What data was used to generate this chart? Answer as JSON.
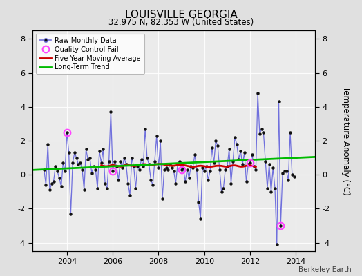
{
  "title": "LOUISVILLE GEORGIA",
  "subtitle": "32.975 N, 82.353 W (United States)",
  "ylabel": "Temperature Anomaly (°C)",
  "credit": "Berkeley Earth",
  "ylim": [
    -4.5,
    8.5
  ],
  "xlim": [
    2002.5,
    2014.83
  ],
  "yticks": [
    -4,
    -2,
    0,
    2,
    4,
    6,
    8
  ],
  "xticks": [
    2004,
    2006,
    2008,
    2010,
    2012,
    2014
  ],
  "bg_color": "#e0e0e0",
  "plot_bg_color": "#ebebeb",
  "raw_color": "#7070dd",
  "ma_color": "#cc0000",
  "trend_color": "#00bb00",
  "qc_color": "#ff44ff",
  "dot_color": "#111111",
  "raw_monthly": [
    0.3,
    -0.6,
    1.8,
    -0.9,
    -0.5,
    -0.4,
    0.5,
    0.2,
    -0.2,
    -0.7,
    0.7,
    0.2,
    2.5,
    1.3,
    -2.3,
    0.7,
    1.3,
    1.0,
    0.6,
    0.7,
    0.3,
    -0.9,
    1.5,
    0.9,
    1.0,
    0.1,
    0.5,
    0.3,
    -0.8,
    1.4,
    0.7,
    1.5,
    -0.5,
    -0.8,
    0.8,
    3.7,
    0.2,
    0.8,
    0.5,
    -0.3,
    0.8,
    0.4,
    1.0,
    0.6,
    -0.5,
    -1.2,
    1.0,
    0.5,
    -0.8,
    0.5,
    0.3,
    0.9,
    0.5,
    2.7,
    1.0,
    0.6,
    -0.3,
    -0.6,
    0.8,
    2.3,
    0.4,
    2.0,
    -1.4,
    0.3,
    0.4,
    0.3,
    0.6,
    0.4,
    0.2,
    -0.5,
    0.6,
    0.8,
    0.3,
    0.4,
    -0.4,
    0.3,
    -0.2,
    0.5,
    0.4,
    1.2,
    0.3,
    -1.6,
    -2.6,
    0.4,
    0.2,
    0.5,
    -0.3,
    0.2,
    1.6,
    0.7,
    2.0,
    1.7,
    0.3,
    -1.0,
    -0.8,
    0.3,
    0.5,
    1.5,
    -0.5,
    0.8,
    2.2,
    1.8,
    0.9,
    1.4,
    0.6,
    1.3,
    -0.4,
    0.6,
    0.7,
    1.2,
    0.5,
    0.3,
    4.8,
    2.4,
    2.7,
    2.5,
    0.8,
    -0.8,
    0.6,
    -1.0,
    0.4,
    -0.8,
    -4.1,
    4.3,
    -3.0,
    0.1,
    0.2,
    0.2,
    -0.3,
    2.5,
    0.0,
    -0.1
  ],
  "start_year": 2003.0,
  "qc_fail_indices": [
    12,
    36,
    72,
    108,
    124,
    132
  ],
  "moving_avg": [
    0.55,
    0.52,
    0.5,
    0.5,
    0.52,
    0.55,
    0.57,
    0.55,
    0.52,
    0.5,
    0.48,
    0.5,
    0.55,
    0.58,
    0.57,
    0.55,
    0.53,
    0.52,
    0.53,
    0.55,
    0.57,
    0.6,
    0.62,
    0.62,
    0.6,
    0.58,
    0.57,
    0.58,
    0.6,
    0.62,
    0.63,
    0.63,
    0.62,
    0.6,
    0.58,
    0.56,
    0.54,
    0.53,
    0.53,
    0.55,
    0.57,
    0.58,
    0.58,
    0.57,
    0.55,
    0.52,
    0.5,
    0.48,
    0.47,
    0.48,
    0.5,
    0.52,
    0.53,
    0.52,
    0.5,
    0.48,
    0.47,
    0.47,
    0.48,
    0.5,
    0.52,
    0.53,
    0.53,
    0.52,
    0.5,
    0.48,
    0.48,
    0.5,
    0.53,
    0.55,
    0.55,
    0.53,
    0.5,
    0.48,
    0.48,
    0.5,
    0.53,
    0.55,
    0.55,
    0.53,
    0.5,
    0.47
  ],
  "ma_start_year": 2005.5,
  "trend_x": [
    2002.5,
    2014.83
  ],
  "trend_y": [
    0.28,
    1.05
  ]
}
